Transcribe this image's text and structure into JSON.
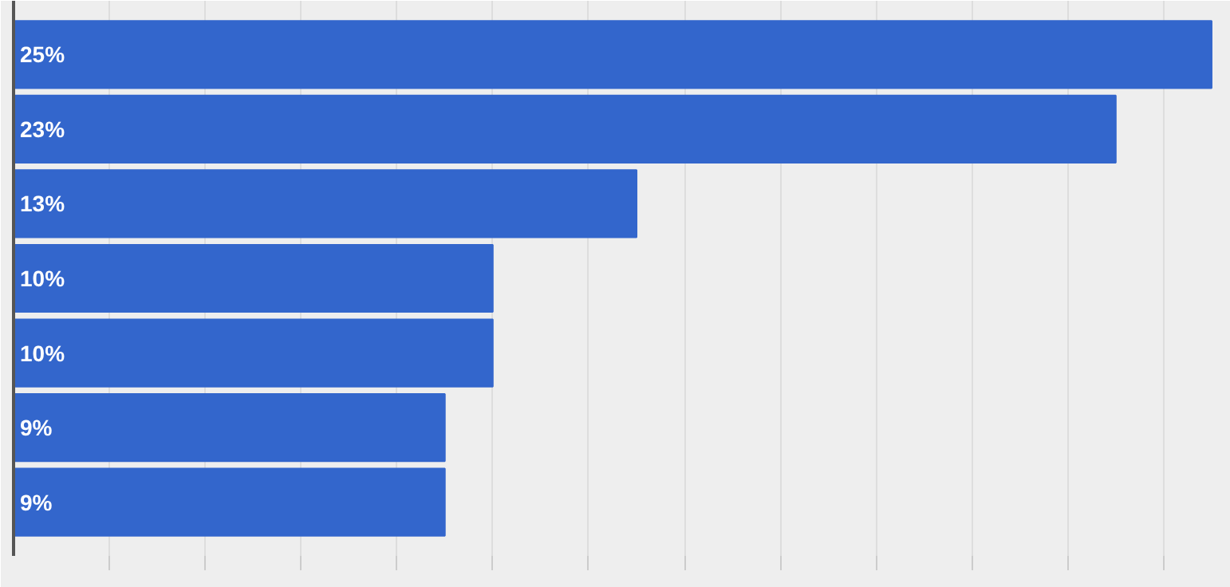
{
  "chart_data": {
    "type": "bar",
    "orientation": "horizontal",
    "categories": [
      null,
      null,
      null,
      null,
      null,
      null,
      null
    ],
    "values": [
      25,
      23,
      13,
      10,
      10,
      9,
      9
    ],
    "value_labels": [
      "25%",
      "23%",
      "13%",
      "10%",
      "10%",
      "9%",
      "9%"
    ],
    "color": "#3366cc",
    "xlim": [
      0,
      25.4
    ],
    "xticks": [
      {
        "value": 2,
        "label": null
      },
      {
        "value": 4,
        "label": null
      },
      {
        "value": 6,
        "label": null
      },
      {
        "value": 8,
        "label": null
      },
      {
        "value": 10,
        "label": null
      },
      {
        "value": 12,
        "label": null
      },
      {
        "value": 14,
        "label": null
      },
      {
        "value": 16,
        "label": null
      },
      {
        "value": 18,
        "label": null
      },
      {
        "value": 20,
        "label": null
      },
      {
        "value": 22,
        "label": null
      },
      {
        "value": 24,
        "label": null
      }
    ],
    "grid": "x"
  }
}
